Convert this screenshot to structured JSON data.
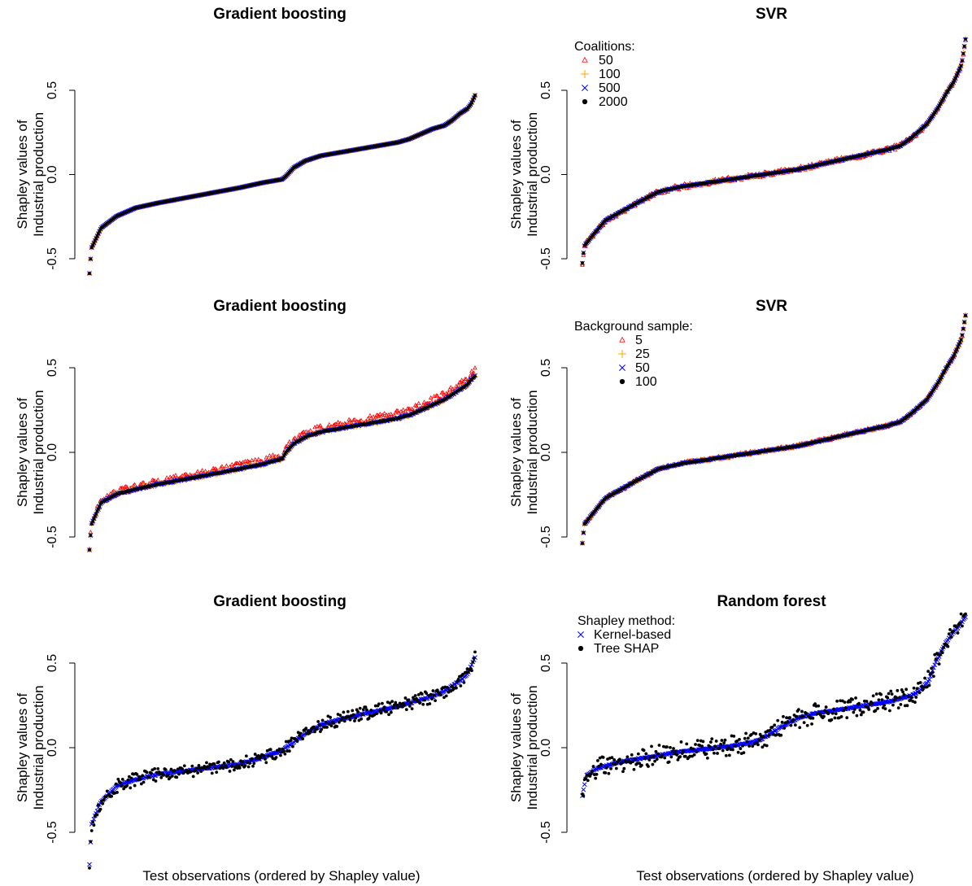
{
  "figure": {
    "xlabel_left": "Test observations (ordered by Shapley value)",
    "xlabel_right": "Test observations (ordered by Shapley value)"
  },
  "chart_data": [
    {
      "id": "p1",
      "type": "scatter",
      "title": "Gradient boosting",
      "ylabel": [
        "Shapley values of",
        "Industrial production"
      ],
      "yticks": [
        "-0.5",
        "0.0",
        "0.5"
      ],
      "ylim": [
        -0.58,
        0.5
      ],
      "x_count": 350,
      "curve_y": [
        -0.58,
        -0.43,
        -0.31,
        -0.24,
        -0.19,
        -0.16,
        -0.13,
        -0.1,
        -0.07,
        -0.04,
        -0.02,
        0.0,
        0.05,
        0.09,
        0.12,
        0.14,
        0.16,
        0.18,
        0.2,
        0.22,
        0.25,
        0.28,
        0.3,
        0.33,
        0.37,
        0.4,
        0.43,
        0.48
      ],
      "curve_x": [
        0,
        0.005,
        0.03,
        0.07,
        0.12,
        0.18,
        0.25,
        0.32,
        0.39,
        0.45,
        0.5,
        0.51,
        0.53,
        0.56,
        0.6,
        0.65,
        0.7,
        0.75,
        0.8,
        0.83,
        0.86,
        0.89,
        0.92,
        0.94,
        0.96,
        0.98,
        0.99,
        1.0
      ],
      "series": [
        {
          "name": "50",
          "marker": "triangle",
          "color": "#ff0000",
          "noise": 0.0
        },
        {
          "name": "100",
          "marker": "plus",
          "color": "#ffa500",
          "noise": 0.0
        },
        {
          "name": "500",
          "marker": "cross",
          "color": "#0000ff",
          "noise": 0.0
        },
        {
          "name": "2000",
          "marker": "dot",
          "color": "#000000",
          "noise": 0.0
        }
      ]
    },
    {
      "id": "p2",
      "type": "scatter",
      "title": "SVR",
      "ylabel": [
        "Shapley values of",
        "Industrial production"
      ],
      "yticks": [
        "-0.5",
        "0.0",
        "0.5"
      ],
      "ylim": [
        -0.52,
        0.8
      ],
      "x_count": 350,
      "curve_y": [
        -0.52,
        -0.42,
        -0.35,
        -0.27,
        -0.22,
        -0.17,
        -0.1,
        -0.07,
        -0.05,
        -0.03,
        -0.01,
        0.01,
        0.03,
        0.05,
        0.07,
        0.09,
        0.11,
        0.13,
        0.15,
        0.17,
        0.22,
        0.3,
        0.4,
        0.48,
        0.55,
        0.65,
        0.8
      ],
      "curve_x": [
        0,
        0.005,
        0.03,
        0.06,
        0.1,
        0.14,
        0.2,
        0.26,
        0.32,
        0.38,
        0.44,
        0.5,
        0.56,
        0.6,
        0.64,
        0.68,
        0.72,
        0.76,
        0.8,
        0.83,
        0.86,
        0.9,
        0.93,
        0.95,
        0.97,
        0.99,
        1.0
      ],
      "legend": {
        "title": "Coalitions:"
      },
      "series": [
        {
          "name": "50",
          "marker": "triangle",
          "color": "#ff0000",
          "noise": 0.015
        },
        {
          "name": "100",
          "marker": "plus",
          "color": "#ffa500",
          "noise": 0.006
        },
        {
          "name": "500",
          "marker": "cross",
          "color": "#0000ff",
          "noise": 0.003
        },
        {
          "name": "2000",
          "marker": "dot",
          "color": "#000000",
          "noise": 0.0
        }
      ]
    },
    {
      "id": "p3",
      "type": "scatter",
      "title": "Gradient boosting",
      "ylabel": [
        "Shapley values of",
        "Industrial production"
      ],
      "yticks": [
        "-0.5",
        "0.0",
        "0.5"
      ],
      "ylim": [
        -0.6,
        0.5
      ],
      "x_count": 350,
      "curve_y": [
        -0.58,
        -0.43,
        -0.3,
        -0.25,
        -0.22,
        -0.19,
        -0.16,
        -0.13,
        -0.1,
        -0.07,
        -0.04,
        0.0,
        0.05,
        0.09,
        0.12,
        0.14,
        0.16,
        0.18,
        0.2,
        0.22,
        0.25,
        0.28,
        0.31,
        0.34,
        0.37,
        0.4,
        0.43,
        0.45
      ],
      "curve_x": [
        0,
        0.005,
        0.03,
        0.07,
        0.12,
        0.18,
        0.25,
        0.32,
        0.39,
        0.45,
        0.5,
        0.51,
        0.53,
        0.56,
        0.6,
        0.65,
        0.7,
        0.75,
        0.8,
        0.83,
        0.86,
        0.89,
        0.92,
        0.94,
        0.96,
        0.98,
        0.99,
        1.0
      ],
      "series": [
        {
          "name": "5",
          "marker": "triangle",
          "color": "#ff0000",
          "noise": 0.02,
          "offset": 0.03
        },
        {
          "name": "25",
          "marker": "plus",
          "color": "#ffa500",
          "noise": 0.008
        },
        {
          "name": "50",
          "marker": "cross",
          "color": "#0000ff",
          "noise": 0.004
        },
        {
          "name": "100",
          "marker": "dot",
          "color": "#000000",
          "noise": 0.0
        }
      ]
    },
    {
      "id": "p4",
      "type": "scatter",
      "title": "SVR",
      "ylabel": [
        "Shapley values of",
        "Industrial production"
      ],
      "yticks": [
        "-0.5",
        "0.0",
        "0.5"
      ],
      "ylim": [
        -0.53,
        0.78
      ],
      "x_count": 350,
      "curve_y": [
        -0.53,
        -0.42,
        -0.35,
        -0.27,
        -0.22,
        -0.17,
        -0.1,
        -0.07,
        -0.05,
        -0.03,
        -0.01,
        0.01,
        0.03,
        0.05,
        0.07,
        0.09,
        0.11,
        0.13,
        0.15,
        0.17,
        0.22,
        0.3,
        0.4,
        0.48,
        0.55,
        0.65,
        0.78
      ],
      "curve_x": [
        0,
        0.005,
        0.03,
        0.06,
        0.1,
        0.14,
        0.2,
        0.26,
        0.32,
        0.38,
        0.44,
        0.5,
        0.56,
        0.6,
        0.64,
        0.68,
        0.72,
        0.76,
        0.8,
        0.83,
        0.86,
        0.9,
        0.93,
        0.95,
        0.97,
        0.99,
        1.0
      ],
      "legend": {
        "title": "Background sample:"
      },
      "series": [
        {
          "name": "5",
          "marker": "triangle",
          "color": "#ff0000",
          "noise": 0.01
        },
        {
          "name": "25",
          "marker": "plus",
          "color": "#ffa500",
          "noise": 0.005
        },
        {
          "name": "50",
          "marker": "cross",
          "color": "#0000ff",
          "noise": 0.003
        },
        {
          "name": "100",
          "marker": "dot",
          "color": "#000000",
          "noise": 0.0
        }
      ]
    },
    {
      "id": "p5",
      "type": "scatter",
      "title": "Gradient boosting",
      "ylabel": [
        "Shapley values of",
        "Industrial production"
      ],
      "yticks": [
        "-0.5",
        "0.0",
        "0.5"
      ],
      "ylim": [
        -0.7,
        0.52
      ],
      "x_count": 350,
      "curve_y": [
        -0.7,
        -0.47,
        -0.33,
        -0.24,
        -0.2,
        -0.17,
        -0.15,
        -0.13,
        -0.11,
        -0.07,
        -0.03,
        0.02,
        0.07,
        0.12,
        0.15,
        0.17,
        0.19,
        0.21,
        0.23,
        0.25,
        0.27,
        0.29,
        0.32,
        0.35,
        0.38,
        0.42,
        0.47,
        0.52
      ],
      "curve_x": [
        0,
        0.005,
        0.03,
        0.07,
        0.12,
        0.18,
        0.25,
        0.32,
        0.39,
        0.45,
        0.5,
        0.53,
        0.56,
        0.6,
        0.64,
        0.68,
        0.72,
        0.76,
        0.8,
        0.83,
        0.86,
        0.89,
        0.92,
        0.94,
        0.96,
        0.98,
        0.99,
        1.0
      ],
      "series": [
        {
          "name": "Kernel-based",
          "marker": "cross",
          "color": "#0000ff",
          "noise": 0.004
        },
        {
          "name": "Tree SHAP",
          "marker": "dot",
          "color": "#000000",
          "noise": 0.018
        }
      ]
    },
    {
      "id": "p6",
      "type": "scatter",
      "title": "Random forest",
      "ylabel": [
        "Shapley values of",
        "Industrial production"
      ],
      "yticks": [
        "-0.5",
        "0.0",
        "0.5"
      ],
      "ylim": [
        -0.52,
        0.76
      ],
      "x_count": 350,
      "curve_y": [
        -0.4,
        -0.27,
        -0.22,
        -0.18,
        -0.15,
        -0.12,
        -0.1,
        -0.08,
        -0.06,
        -0.04,
        0.0,
        0.05,
        0.1,
        0.13,
        0.15,
        0.17,
        0.19,
        0.21,
        0.23,
        0.25,
        0.28,
        0.33,
        0.38,
        0.45,
        0.6,
        0.72,
        0.76
      ],
      "curve_x": [
        0,
        0.01,
        0.04,
        0.1,
        0.17,
        0.24,
        0.31,
        0.38,
        0.43,
        0.46,
        0.49,
        0.52,
        0.56,
        0.6,
        0.65,
        0.7,
        0.75,
        0.8,
        0.83,
        0.86,
        0.88,
        0.9,
        0.91,
        0.92,
        0.95,
        0.99,
        1.0
      ],
      "legend": {
        "title": "Shapley method:"
      },
      "series": [
        {
          "name": "Kernel-based",
          "marker": "cross",
          "color": "#0000ff",
          "noise": 0.004
        },
        {
          "name": "Tree SHAP",
          "marker": "dot",
          "color": "#000000",
          "noise": 0.03
        }
      ]
    }
  ]
}
